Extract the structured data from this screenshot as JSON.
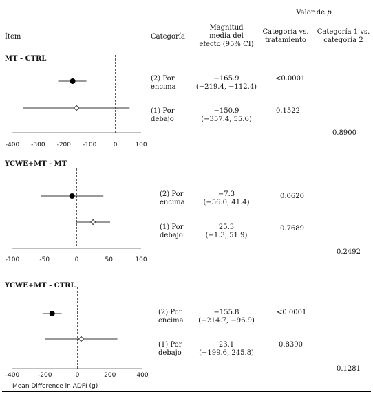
{
  "header": {
    "pvalue_group": "Valor de",
    "pvalue_group_p": "p",
    "col_item": "Ítem",
    "col_category": "Categoría",
    "col_magnitude_l1": "Magnitud",
    "col_magnitude_l2": "media del",
    "col_magnitude_l3": "efecto (95% CI)",
    "col_cat_vs_treat_l1": "Categoría vs.",
    "col_cat_vs_treat_l2": "tratamiento",
    "col_cat1_vs_cat2_l1": "Categoría 1 vs.",
    "col_cat1_vs_cat2_l2": "categoría 2"
  },
  "sections": [
    {
      "title": "MT - CTRL",
      "rows": [
        {
          "category_l1": "(2) Por",
          "category_l2": "encima",
          "mean": "−165.9",
          "ci": "(−219.4, −112.4)",
          "p": "<0.0001"
        },
        {
          "category_l1": "(1) Por",
          "category_l2": "debajo",
          "mean": "−150.9",
          "ci": "(−357.4, 55.6)",
          "p": "0.1522"
        }
      ],
      "p_between": "0.8900",
      "axis_ticks": [
        "-400",
        "-300",
        "-200",
        "-100",
        "0",
        "100"
      ]
    },
    {
      "title": "YCWE+MT - MT",
      "rows": [
        {
          "category_l1": "(2) Por",
          "category_l2": "encima",
          "mean": "−7.3",
          "ci": "(−56.0, 41.4)",
          "p": "0.0620"
        },
        {
          "category_l1": "(1) Por",
          "category_l2": "debajo",
          "mean": "25.3",
          "ci": "(−1.3, 51.9)",
          "p": "0.7689"
        }
      ],
      "p_between": "0.2492",
      "axis_ticks": [
        "-100",
        "-50",
        "0",
        "50",
        "100"
      ]
    },
    {
      "title": "YCWE+MT - CTRL",
      "rows": [
        {
          "category_l1": "(2) Por",
          "category_l2": "encima",
          "mean": "−155.8",
          "ci": "(−214.7, −96.9)",
          "p": "<0.0001"
        },
        {
          "category_l1": "(1) Por",
          "category_l2": "debajo",
          "mean": "23.1",
          "ci": "(−199.6, 245.8)",
          "p": "0.8390"
        }
      ],
      "p_between": "0.1281",
      "axis_ticks": [
        "-400",
        "-200",
        "0",
        "200",
        "400"
      ]
    }
  ],
  "x_axis_label": "Mean Difference in ADFI (g)",
  "chart_data": [
    {
      "type": "scatter",
      "xlim": [
        -400,
        100
      ],
      "points": [
        {
          "y": "(2) Por encima",
          "x": -165.9,
          "lo": -219.4,
          "hi": -112.4,
          "marker": "filled-circle"
        },
        {
          "y": "(1) Por debajo",
          "x": -150.9,
          "lo": -357.4,
          "hi": 55.6,
          "marker": "open-diamond"
        }
      ]
    },
    {
      "type": "scatter",
      "xlim": [
        -100,
        100
      ],
      "points": [
        {
          "y": "(2) Por encima",
          "x": -7.3,
          "lo": -56.0,
          "hi": 41.4,
          "marker": "filled-circle"
        },
        {
          "y": "(1) Por debajo",
          "x": 25.3,
          "lo": -1.3,
          "hi": 51.9,
          "marker": "open-diamond"
        }
      ]
    },
    {
      "type": "scatter",
      "xlim": [
        -400,
        400
      ],
      "points": [
        {
          "y": "(2) Por encima",
          "x": -155.8,
          "lo": -214.7,
          "hi": -96.9,
          "marker": "filled-circle"
        },
        {
          "y": "(1) Por debajo",
          "x": 23.1,
          "lo": -199.6,
          "hi": 245.8,
          "marker": "open-diamond"
        }
      ]
    }
  ]
}
